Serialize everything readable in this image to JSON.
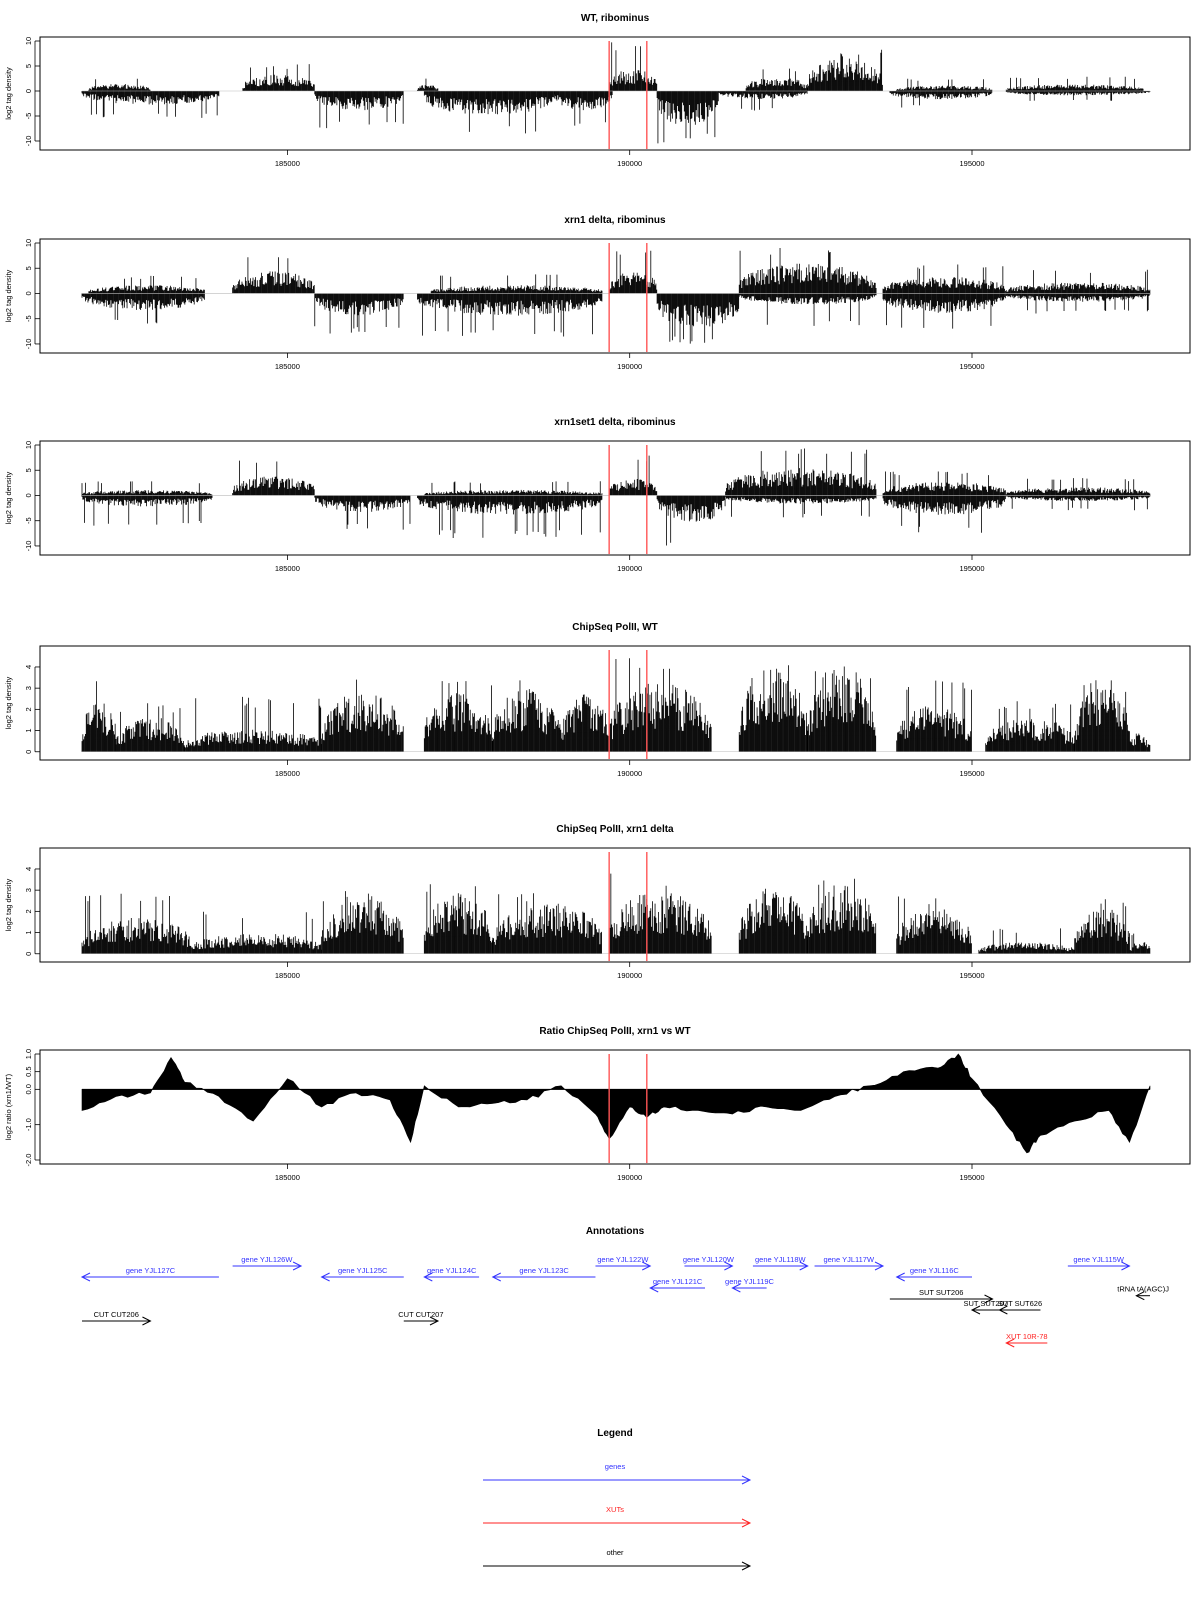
{
  "chart_data": [
    {
      "type": "bar",
      "title": "WT, ribominus",
      "xlabel": "",
      "ylabel": "log2 tag density",
      "xlim": [
        182000,
        197600
      ],
      "ylim": [
        -11,
        10
      ],
      "x_ticks": [
        185000,
        190000,
        195000
      ],
      "y_ticks": [
        10,
        5,
        0,
        -5,
        -10
      ],
      "grid": false,
      "markers_x": [
        189700,
        190250
      ],
      "marker_color": "#ff5555",
      "segments": [
        {
          "x": [
            182000,
            184000
          ],
          "sign": -1,
          "amp": 2.5,
          "peak": 5.5
        },
        {
          "x": [
            182100,
            183000
          ],
          "sign": 1,
          "amp": 1.3,
          "peak": 2.5
        },
        {
          "x": [
            184350,
            185400
          ],
          "sign": 1,
          "amp": 3.0,
          "peak": 5.5
        },
        {
          "x": [
            185400,
            186700
          ],
          "sign": -1,
          "amp": 3.5,
          "peak": 7.5
        },
        {
          "x": [
            186900,
            187200
          ],
          "sign": 1,
          "amp": 1.2,
          "peak": 2.5
        },
        {
          "x": [
            187000,
            188900
          ],
          "sign": -1,
          "amp": 4.5,
          "peak": 8.5
        },
        {
          "x": [
            188900,
            189750
          ],
          "sign": -1,
          "amp": 3.5,
          "peak": 7.0
        },
        {
          "x": [
            189700,
            190400
          ],
          "sign": 1,
          "amp": 4.0,
          "peak": 10.0
        },
        {
          "x": [
            190400,
            191300
          ],
          "sign": -1,
          "amp": 6.5,
          "peak": 10.5
        },
        {
          "x": [
            191300,
            192600
          ],
          "sign": -1,
          "amp": 1.5,
          "peak": 4.0
        },
        {
          "x": [
            191700,
            192600
          ],
          "sign": 1,
          "amp": 2.5,
          "peak": 4.5
        },
        {
          "x": [
            192600,
            193700
          ],
          "sign": 1,
          "amp": 6.0,
          "peak": 8.5
        },
        {
          "x": [
            193800,
            195300
          ],
          "sign": -1,
          "amp": 1.5,
          "peak": 3.5
        },
        {
          "x": [
            193900,
            195300
          ],
          "sign": 1,
          "amp": 1.0,
          "peak": 2.5
        },
        {
          "x": [
            195500,
            197500
          ],
          "sign": 1,
          "amp": 1.2,
          "peak": 3.0
        },
        {
          "x": [
            195500,
            197600
          ],
          "sign": -1,
          "amp": 0.8,
          "peak": 2.0
        }
      ]
    },
    {
      "type": "bar",
      "title": "xrn1 delta, ribominus",
      "xlabel": "",
      "ylabel": "log2 tag density",
      "xlim": [
        182000,
        197600
      ],
      "ylim": [
        -11,
        10
      ],
      "x_ticks": [
        185000,
        190000,
        195000
      ],
      "y_ticks": [
        10,
        5,
        0,
        -5,
        -10
      ],
      "grid": false,
      "markers_x": [
        189700,
        190250
      ],
      "marker_color": "#ff5555",
      "segments": [
        {
          "x": [
            182000,
            183800
          ],
          "sign": -1,
          "amp": 3.0,
          "peak": 6.0
        },
        {
          "x": [
            182100,
            183800
          ],
          "sign": 1,
          "amp": 1.5,
          "peak": 3.5
        },
        {
          "x": [
            184200,
            185400
          ],
          "sign": 1,
          "amp": 4.0,
          "peak": 7.5
        },
        {
          "x": [
            185400,
            186700
          ],
          "sign": -1,
          "amp": 4.0,
          "peak": 8.0
        },
        {
          "x": [
            186900,
            189600
          ],
          "sign": -1,
          "amp": 4.0,
          "peak": 9.0
        },
        {
          "x": [
            187100,
            189600
          ],
          "sign": 1,
          "amp": 1.5,
          "peak": 4.0
        },
        {
          "x": [
            189700,
            190400
          ],
          "sign": 1,
          "amp": 4.0,
          "peak": 9.0
        },
        {
          "x": [
            190400,
            191600
          ],
          "sign": -1,
          "amp": 6.5,
          "peak": 10.0
        },
        {
          "x": [
            191600,
            193600
          ],
          "sign": 1,
          "amp": 5.5,
          "peak": 9.5
        },
        {
          "x": [
            191600,
            193600
          ],
          "sign": -1,
          "amp": 2.0,
          "peak": 6.5
        },
        {
          "x": [
            193700,
            195500
          ],
          "sign": 1,
          "amp": 3.0,
          "peak": 6.0
        },
        {
          "x": [
            193700,
            195500
          ],
          "sign": -1,
          "amp": 3.5,
          "peak": 7.5
        },
        {
          "x": [
            195500,
            197600
          ],
          "sign": 1,
          "amp": 2.0,
          "peak": 5.0
        },
        {
          "x": [
            195500,
            197600
          ],
          "sign": -1,
          "amp": 1.5,
          "peak": 4.0
        }
      ]
    },
    {
      "type": "bar",
      "title": "xrn1set1 delta, ribominus",
      "xlabel": "",
      "ylabel": "log2 tag density",
      "xlim": [
        182000,
        197600
      ],
      "ylim": [
        -11,
        10
      ],
      "x_ticks": [
        185000,
        190000,
        195000
      ],
      "y_ticks": [
        10,
        5,
        0,
        -5,
        -10
      ],
      "grid": false,
      "markers_x": [
        189700,
        190250
      ],
      "marker_color": "#ff5555",
      "segments": [
        {
          "x": [
            182000,
            183900
          ],
          "sign": -1,
          "amp": 2.0,
          "peak": 6.0
        },
        {
          "x": [
            182000,
            183900
          ],
          "sign": 1,
          "amp": 1.0,
          "peak": 3.0
        },
        {
          "x": [
            184200,
            185400
          ],
          "sign": 1,
          "amp": 3.5,
          "peak": 7.0
        },
        {
          "x": [
            185400,
            186800
          ],
          "sign": -1,
          "amp": 3.0,
          "peak": 7.0
        },
        {
          "x": [
            186900,
            189600
          ],
          "sign": -1,
          "amp": 3.5,
          "peak": 8.5
        },
        {
          "x": [
            187000,
            189600
          ],
          "sign": 1,
          "amp": 1.0,
          "peak": 3.0
        },
        {
          "x": [
            189700,
            190400
          ],
          "sign": 1,
          "amp": 3.0,
          "peak": 8.0
        },
        {
          "x": [
            190400,
            191400
          ],
          "sign": -1,
          "amp": 5.0,
          "peak": 11.0
        },
        {
          "x": [
            191400,
            193600
          ],
          "sign": 1,
          "amp": 5.0,
          "peak": 9.5
        },
        {
          "x": [
            191400,
            193600
          ],
          "sign": -1,
          "amp": 1.5,
          "peak": 4.5
        },
        {
          "x": [
            193700,
            195500
          ],
          "sign": 1,
          "amp": 2.5,
          "peak": 5.0
        },
        {
          "x": [
            193700,
            195500
          ],
          "sign": -1,
          "amp": 3.5,
          "peak": 7.5
        },
        {
          "x": [
            195500,
            197600
          ],
          "sign": 1,
          "amp": 1.5,
          "peak": 3.5
        },
        {
          "x": [
            195500,
            197600
          ],
          "sign": -1,
          "amp": 1.0,
          "peak": 3.0
        }
      ]
    },
    {
      "type": "bar",
      "title": "ChipSeq PolII, WT",
      "xlabel": "",
      "ylabel": "log2 tag density",
      "xlim": [
        182000,
        197600
      ],
      "ylim": [
        -0.2,
        4.8
      ],
      "x_ticks": [
        185000,
        190000,
        195000
      ],
      "y_ticks": [
        4,
        3,
        2,
        1,
        0
      ],
      "grid": false,
      "markers_x": [
        189700,
        190250
      ],
      "marker_color": "#ff5555",
      "segments": [
        {
          "x": [
            182000,
            182500
          ],
          "sign": 1,
          "amp": 2.2,
          "peak": 3.5
        },
        {
          "x": [
            182500,
            183500
          ],
          "sign": 1,
          "amp": 1.5,
          "peak": 2.3
        },
        {
          "x": [
            183500,
            185500
          ],
          "sign": 1,
          "amp": 1.0,
          "peak": 2.6
        },
        {
          "x": [
            185500,
            186700
          ],
          "sign": 1,
          "amp": 2.6,
          "peak": 3.5
        },
        {
          "x": [
            187000,
            188000
          ],
          "sign": 1,
          "amp": 2.6,
          "peak": 3.4
        },
        {
          "x": [
            188000,
            189000
          ],
          "sign": 1,
          "amp": 2.7,
          "peak": 3.5
        },
        {
          "x": [
            189000,
            189700
          ],
          "sign": 1,
          "amp": 2.5,
          "peak": 3.2
        },
        {
          "x": [
            189700,
            191200
          ],
          "sign": 1,
          "amp": 3.0,
          "peak": 4.6
        },
        {
          "x": [
            191600,
            192600
          ],
          "sign": 1,
          "amp": 3.6,
          "peak": 4.3
        },
        {
          "x": [
            192600,
            193600
          ],
          "sign": 1,
          "amp": 3.8,
          "peak": 4.2
        },
        {
          "x": [
            193900,
            195000
          ],
          "sign": 1,
          "amp": 2.0,
          "peak": 3.4
        },
        {
          "x": [
            195200,
            196500
          ],
          "sign": 1,
          "amp": 1.5,
          "peak": 2.4
        },
        {
          "x": [
            196500,
            197300
          ],
          "sign": 1,
          "amp": 2.8,
          "peak": 3.4
        },
        {
          "x": [
            197300,
            197600
          ],
          "sign": 1,
          "amp": 0.8,
          "peak": 1.0
        }
      ]
    },
    {
      "type": "bar",
      "title": "ChipSeq PolII, xrn1 delta",
      "xlabel": "",
      "ylabel": "log2 tag density",
      "xlim": [
        182000,
        197600
      ],
      "ylim": [
        -0.2,
        4.8
      ],
      "x_ticks": [
        185000,
        190000,
        195000
      ],
      "y_ticks": [
        4,
        3,
        2,
        1,
        0
      ],
      "grid": false,
      "markers_x": [
        189700,
        190250
      ],
      "marker_color": "#ff5555",
      "segments": [
        {
          "x": [
            182000,
            183600
          ],
          "sign": 1,
          "amp": 1.6,
          "peak": 2.9
        },
        {
          "x": [
            183600,
            185500
          ],
          "sign": 1,
          "amp": 0.9,
          "peak": 2.0
        },
        {
          "x": [
            185500,
            186700
          ],
          "sign": 1,
          "amp": 2.4,
          "peak": 3.0
        },
        {
          "x": [
            187000,
            188000
          ],
          "sign": 1,
          "amp": 2.6,
          "peak": 3.3
        },
        {
          "x": [
            188000,
            189600
          ],
          "sign": 1,
          "amp": 2.2,
          "peak": 3.0
        },
        {
          "x": [
            189700,
            191200
          ],
          "sign": 1,
          "amp": 2.7,
          "peak": 3.8
        },
        {
          "x": [
            191600,
            192600
          ],
          "sign": 1,
          "amp": 2.8,
          "peak": 3.4
        },
        {
          "x": [
            192600,
            193600
          ],
          "sign": 1,
          "amp": 3.0,
          "peak": 3.6
        },
        {
          "x": [
            193900,
            195000
          ],
          "sign": 1,
          "amp": 2.0,
          "peak": 2.8
        },
        {
          "x": [
            195100,
            196500
          ],
          "sign": 1,
          "amp": 0.5,
          "peak": 1.2
        },
        {
          "x": [
            196500,
            197300
          ],
          "sign": 1,
          "amp": 2.0,
          "peak": 2.6
        },
        {
          "x": [
            197300,
            197600
          ],
          "sign": 1,
          "amp": 0.6,
          "peak": 1.0
        }
      ]
    },
    {
      "type": "area",
      "title": "Ratio ChipSeq PolII, xrn1 vs WT",
      "xlabel": "",
      "ylabel": "log2 ratio (xrn1/WT)",
      "xlim": [
        182000,
        197600
      ],
      "ylim": [
        -2.0,
        1.0
      ],
      "x_ticks": [
        185000,
        190000,
        195000
      ],
      "y_ticks": [
        1.0,
        0.5,
        0.0,
        -1.0,
        -2.0
      ],
      "y_tick_labels": [
        "1.0",
        "0.5",
        "0.0",
        "-1.0",
        "-2.0"
      ],
      "grid": false,
      "markers_x": [
        189700,
        190250
      ],
      "marker_color": "#ff5555",
      "x": [
        182000,
        182500,
        183000,
        183300,
        183500,
        184000,
        184500,
        185000,
        185500,
        186000,
        186500,
        186800,
        187000,
        187500,
        188000,
        188500,
        189000,
        189500,
        189700,
        190000,
        190250,
        190500,
        191000,
        191500,
        192000,
        192500,
        193000,
        193500,
        194000,
        194500,
        194800,
        195000,
        195500,
        195800,
        196000,
        196500,
        197000,
        197300,
        197600
      ],
      "values": [
        -0.6,
        -0.2,
        -0.1,
        0.9,
        0.2,
        -0.2,
        -0.9,
        0.3,
        -0.5,
        -0.1,
        -0.3,
        -1.5,
        0.1,
        -0.5,
        -0.4,
        -0.3,
        0.1,
        -0.7,
        -1.4,
        -0.5,
        -0.8,
        -0.5,
        -0.6,
        -0.7,
        -0.5,
        -0.6,
        -0.2,
        0.1,
        0.5,
        0.6,
        1.0,
        0.3,
        -1.0,
        -1.8,
        -1.3,
        -0.9,
        -0.6,
        -1.5,
        0.1
      ]
    }
  ],
  "annotations": {
    "title": "Annotations",
    "genes": [
      {
        "label": "gene YJL127C",
        "x": [
          182000,
          184000
        ],
        "dir": "left",
        "row": 0
      },
      {
        "label": "gene YJL126W",
        "x": [
          184200,
          185200
        ],
        "dir": "right",
        "row": -1
      },
      {
        "label": "gene YJL125C",
        "x": [
          185500,
          186700
        ],
        "dir": "left",
        "row": 0
      },
      {
        "label": "gene YJL124C",
        "x": [
          187000,
          187800
        ],
        "dir": "left",
        "row": 0
      },
      {
        "label": "gene YJL123C",
        "x": [
          188000,
          189500
        ],
        "dir": "left",
        "row": 0
      },
      {
        "label": "gene YJL122W",
        "x": [
          189500,
          190300
        ],
        "dir": "right",
        "row": -1
      },
      {
        "label": "gene YJL121C",
        "x": [
          190300,
          191100
        ],
        "dir": "left",
        "row": 1
      },
      {
        "label": "gene YJL120W",
        "x": [
          190800,
          191500
        ],
        "dir": "right",
        "row": -1
      },
      {
        "label": "gene YJL119C",
        "x": [
          191500,
          192000
        ],
        "dir": "left",
        "row": 1
      },
      {
        "label": "gene YJL118W",
        "x": [
          191800,
          192600
        ],
        "dir": "right",
        "row": -1
      },
      {
        "label": "gene YJL117W",
        "x": [
          192700,
          193700
        ],
        "dir": "right",
        "row": -1
      },
      {
        "label": "gene YJL116C",
        "x": [
          193900,
          195000
        ],
        "dir": "left",
        "row": 0
      },
      {
        "label": "gene YJL115W",
        "x": [
          196400,
          197300
        ],
        "dir": "right",
        "row": -1
      }
    ],
    "others": [
      {
        "label": "CUT CUT206",
        "x": [
          182000,
          183000
        ],
        "dir": "right",
        "row": 4
      },
      {
        "label": "CUT CUT207",
        "x": [
          186700,
          187200
        ],
        "dir": "right",
        "row": 4
      },
      {
        "label": "SUT SUT206",
        "x": [
          193800,
          195300
        ],
        "dir": "right",
        "row": 2
      },
      {
        "label": "SUT SUT207",
        "x": [
          195000,
          195400
        ],
        "dir": "left",
        "row": 3
      },
      {
        "label": "SUT SUT626",
        "x": [
          195400,
          196000
        ],
        "dir": "left",
        "row": 3
      },
      {
        "label": "tRNA tA(AGC)J",
        "x": [
          197400,
          197600
        ],
        "dir": "left",
        "row": 1.7
      }
    ],
    "xuts": [
      {
        "label": "XUT 10R-78",
        "x": [
          195500,
          196100
        ],
        "dir": "left",
        "row": 6
      }
    ]
  },
  "legend": {
    "title": "Legend",
    "items": [
      {
        "label": "genes",
        "color": "#3333ff"
      },
      {
        "label": "XUTs",
        "color": "#ff2222"
      },
      {
        "label": "other",
        "color": "#000000"
      }
    ]
  },
  "colors": {
    "gene": "#3333ff",
    "xut": "#ff2222",
    "other": "#000000",
    "marker": "#ff5555"
  }
}
